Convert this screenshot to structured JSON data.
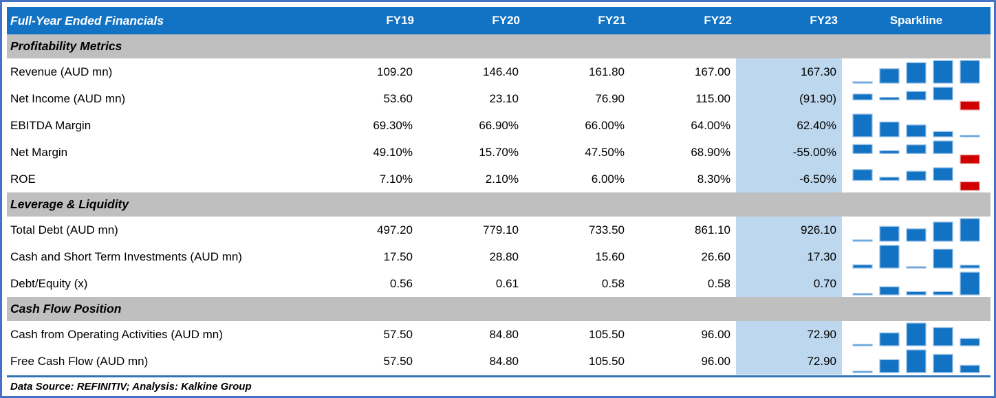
{
  "footer": {
    "note": "Data Source: REFINITIV; Analysis: Kalkine Group"
  },
  "colors": {
    "header_blue": "#1272C4",
    "highlight_blue": "#BDD7EE",
    "section_gray": "#BFBFBF",
    "bar_blue": "#1272C4",
    "bar_blue_stroke": "#9DC3E6",
    "bar_negative_red": "#D00000",
    "bar_negative_red_stroke": "#E8A7A7",
    "frame_blue": "#4472C4",
    "rule_blue": "#2E75B6"
  },
  "chart_data": {
    "type": "table",
    "title": "Full-Year Ended Financials",
    "year_columns": [
      "FY19",
      "FY20",
      "FY21",
      "FY22",
      "FY23"
    ],
    "sparkline_label": "Sparkline",
    "sparkline_type": "bar",
    "highlight_column": "FY23",
    "sections": [
      {
        "title": "Profitability Metrics",
        "rows": [
          {
            "label": "Revenue (AUD mn)",
            "display": [
              "109.20",
              "146.40",
              "161.80",
              "167.00",
              "167.30"
            ],
            "values": [
              109.2,
              146.4,
              161.8,
              167.0,
              167.3
            ]
          },
          {
            "label": "Net Income (AUD mn)",
            "display": [
              "53.60",
              "23.10",
              "76.90",
              "115.00",
              "(91.90)"
            ],
            "values": [
              53.6,
              23.1,
              76.9,
              115.0,
              -91.9
            ]
          },
          {
            "label": "EBITDA Margin",
            "display": [
              "69.30%",
              "66.90%",
              "66.00%",
              "64.00%",
              "62.40%"
            ],
            "values": [
              69.3,
              66.9,
              66.0,
              64.0,
              62.4
            ]
          },
          {
            "label": "Net Margin",
            "display": [
              "49.10%",
              "15.70%",
              "47.50%",
              "68.90%",
              "-55.00%"
            ],
            "values": [
              49.1,
              15.7,
              47.5,
              68.9,
              -55.0
            ]
          },
          {
            "label": "ROE",
            "display": [
              "7.10%",
              "2.10%",
              "6.00%",
              "8.30%",
              "-6.50%"
            ],
            "values": [
              7.1,
              2.1,
              6.0,
              8.3,
              -6.5
            ]
          }
        ]
      },
      {
        "title": "Leverage & Liquidity",
        "rows": [
          {
            "label": "Total Debt (AUD mn)",
            "display": [
              "497.20",
              "779.10",
              "733.50",
              "861.10",
              "926.10"
            ],
            "values": [
              497.2,
              779.1,
              733.5,
              861.1,
              926.1
            ]
          },
          {
            "label": "Cash and Short Term Investments (AUD mn)",
            "display": [
              "17.50",
              "28.80",
              "15.60",
              "26.60",
              "17.30"
            ],
            "values": [
              17.5,
              28.8,
              15.6,
              26.6,
              17.3
            ]
          },
          {
            "label": "Debt/Equity (x)",
            "display": [
              "0.56",
              "0.61",
              "0.58",
              "0.58",
              "0.70"
            ],
            "values": [
              0.56,
              0.61,
              0.58,
              0.58,
              0.7
            ]
          }
        ]
      },
      {
        "title": "Cash Flow Position",
        "rows": [
          {
            "label": "Cash from Operating Activities (AUD mn)",
            "display": [
              "57.50",
              "84.80",
              "105.50",
              "96.00",
              "72.90"
            ],
            "values": [
              57.5,
              84.8,
              105.5,
              96.0,
              72.9
            ]
          },
          {
            "label": "Free Cash Flow (AUD mn)",
            "display": [
              "57.50",
              "84.80",
              "105.50",
              "96.00",
              "72.90"
            ],
            "values": [
              57.5,
              84.8,
              105.5,
              96.0,
              72.9
            ]
          }
        ]
      }
    ]
  }
}
